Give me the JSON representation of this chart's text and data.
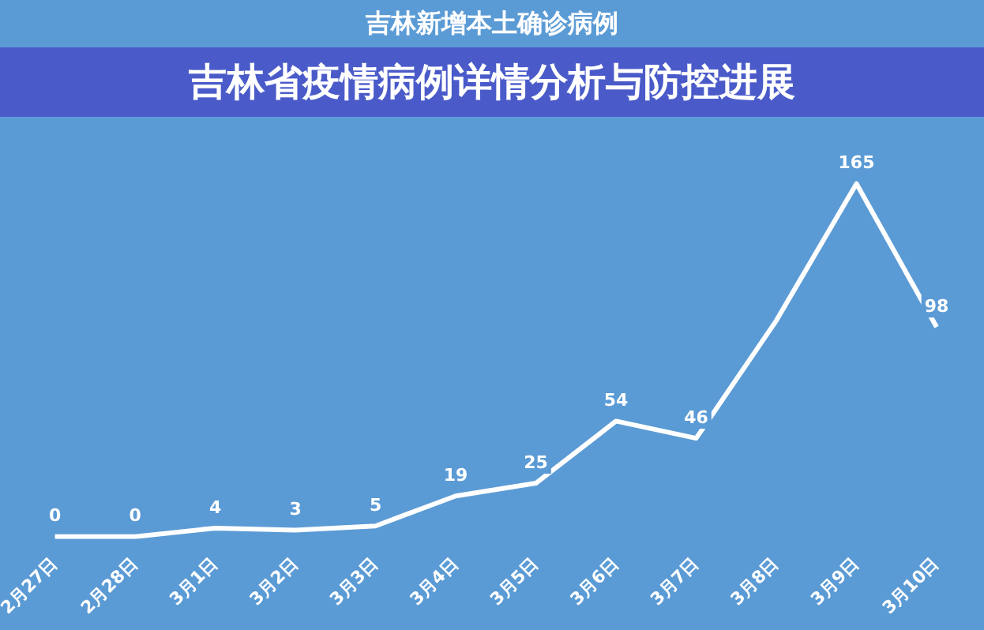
{
  "chart_data": {
    "type": "line",
    "title": "吉林新增本土确诊病例",
    "subtitle": "吉林省疫情病例详情分析与防控进展",
    "categories": [
      "2月27日",
      "2月28日",
      "3月1日",
      "3月2日",
      "3月3日",
      "3月4日",
      "3月5日",
      "3月6日",
      "3月7日",
      "3月8日",
      "3月9日",
      "3月10日"
    ],
    "values": [
      0,
      0,
      4,
      3,
      5,
      19,
      25,
      54,
      46,
      101,
      165,
      98
    ],
    "value_labels": [
      "0",
      "0",
      "4",
      "3",
      "5",
      "19",
      "25",
      "54",
      "46",
      null,
      "165",
      "98"
    ],
    "color": "#ffffff",
    "tick_labels": "x"
  }
}
